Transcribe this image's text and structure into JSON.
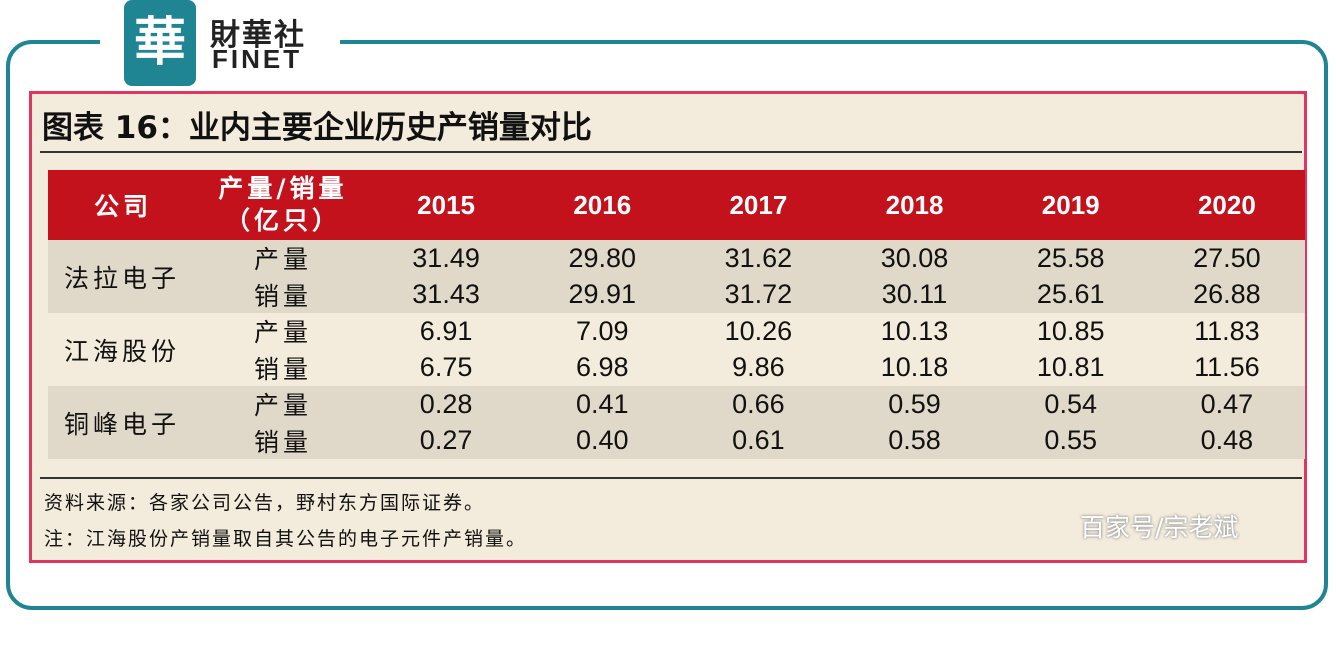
{
  "brand": {
    "seal_char": "華",
    "name_cn": "財華社",
    "name_en": "FINET",
    "color": "#1f8593"
  },
  "figure": {
    "title": "图表 16：业内主要企业历史产销量对比",
    "accent_color": "#c4121c",
    "border_color": "#e03560"
  },
  "table": {
    "headers": {
      "company": "公司",
      "metric_line1": "产量/销量",
      "metric_line2": "（亿只）",
      "years": [
        "2015",
        "2016",
        "2017",
        "2018",
        "2019",
        "2020"
      ]
    },
    "rows": [
      {
        "company": "法拉电子",
        "metric": "产量",
        "values": [
          "31.49",
          "29.80",
          "31.62",
          "30.08",
          "25.58",
          "27.50"
        ]
      },
      {
        "company": "",
        "metric": "销量",
        "values": [
          "31.43",
          "29.91",
          "31.72",
          "30.11",
          "25.61",
          "26.88"
        ]
      },
      {
        "company": "江海股份",
        "metric": "产量",
        "values": [
          "6.91",
          "7.09",
          "10.26",
          "10.13",
          "10.85",
          "11.83"
        ]
      },
      {
        "company": "",
        "metric": "销量",
        "values": [
          "6.75",
          "6.98",
          "9.86",
          "10.18",
          "10.81",
          "11.56"
        ]
      },
      {
        "company": "铜峰电子",
        "metric": "产量",
        "values": [
          "0.28",
          "0.41",
          "0.66",
          "0.59",
          "0.54",
          "0.47"
        ]
      },
      {
        "company": "",
        "metric": "销量",
        "values": [
          "0.27",
          "0.40",
          "0.61",
          "0.58",
          "0.55",
          "0.48"
        ]
      }
    ]
  },
  "notes": {
    "source": "资料来源：各家公司公告，野村东方国际证券。",
    "note": "注：江海股份产销量取自其公告的电子元件产销量。"
  },
  "credit": "百家号/宗老斌"
}
